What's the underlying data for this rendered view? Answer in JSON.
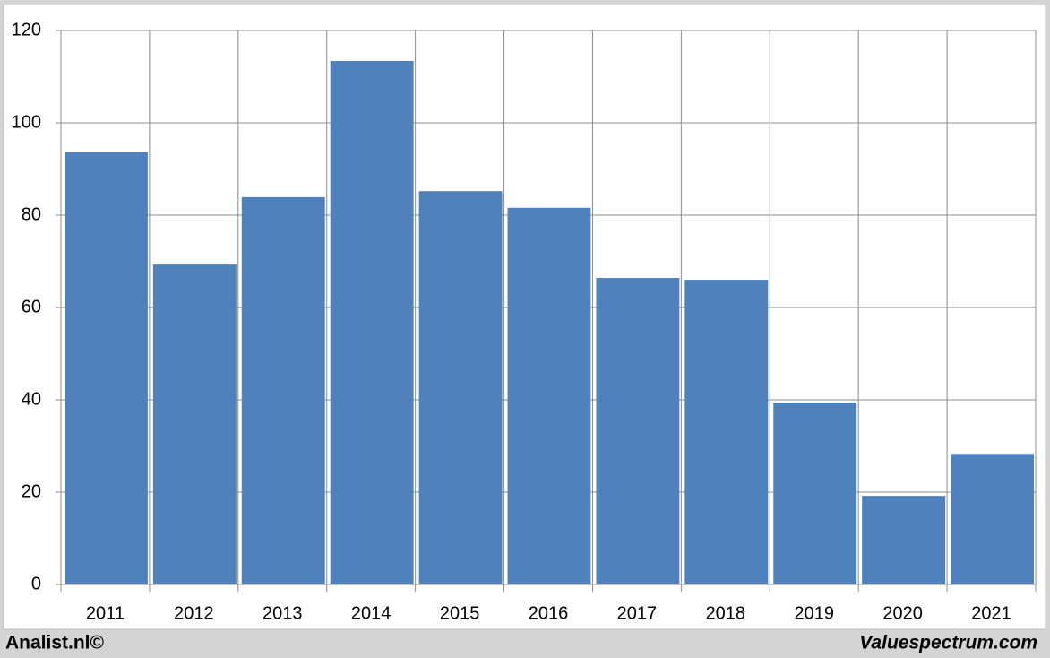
{
  "chart_data": {
    "type": "bar",
    "categories": [
      "2011",
      "2012",
      "2013",
      "2014",
      "2015",
      "2016",
      "2017",
      "2018",
      "2019",
      "2020",
      "2021"
    ],
    "values": [
      93.6,
      69.3,
      83.9,
      113.4,
      85.2,
      81.6,
      66.4,
      66.0,
      39.4,
      19.2,
      28.3
    ],
    "color": "#4f81bd",
    "ylim": [
      0,
      120
    ],
    "yticks": [
      0,
      20,
      40,
      60,
      80,
      100,
      120
    ],
    "grid": true
  },
  "footer": {
    "left": "Analist.nl©",
    "right": "Valuespectrum.com"
  }
}
